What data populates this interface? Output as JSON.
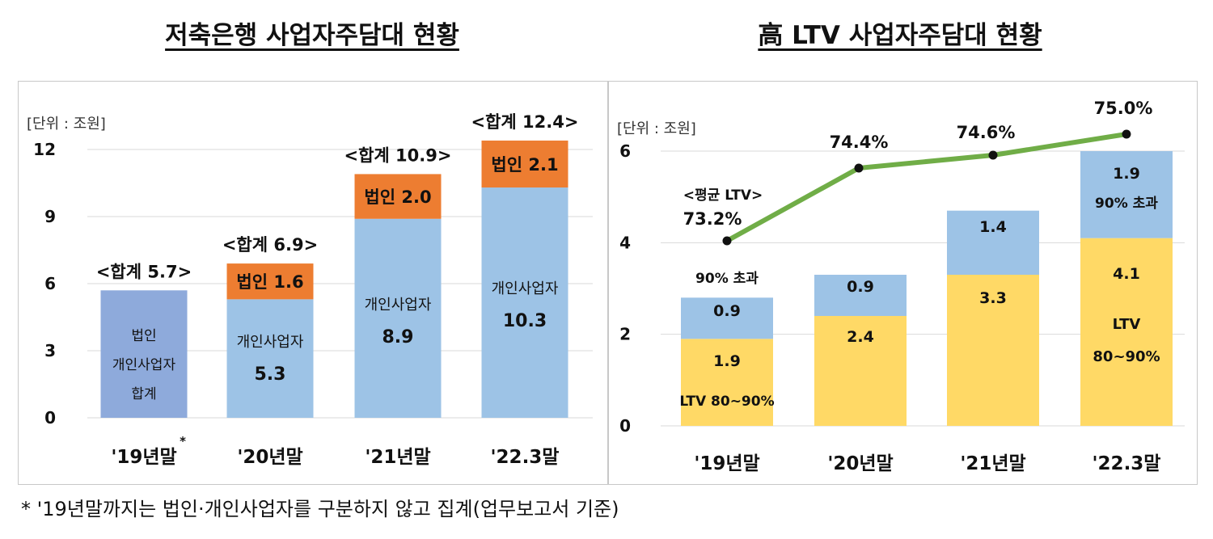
{
  "left": {
    "title": "저축은행 사업자주담대 현황",
    "unit": "[단위 : 조원]",
    "chart_data": {
      "type": "bar",
      "stacked": true,
      "categories": [
        "'19년말*",
        "'20년말",
        "'21년말",
        "'22.3말"
      ],
      "category_labels": [
        "'19년말",
        "'20년말",
        "'21년말",
        "'22.3말"
      ],
      "ylim": [
        0,
        12
      ],
      "yticks": [
        "0",
        "3",
        "6",
        "9",
        "12"
      ],
      "grid": true,
      "series": [
        {
          "name": "개인사업자",
          "color": "#9dc3e6",
          "values": [
            null,
            5.3,
            8.9,
            10.3
          ]
        },
        {
          "name": "법인",
          "color": "#ed7d31",
          "values": [
            null,
            1.6,
            2.0,
            2.1
          ]
        }
      ],
      "combined_2019": {
        "value": 5.7,
        "color": "#8eaadb",
        "label_lines": [
          "법인",
          "개인사업자",
          "합계"
        ]
      },
      "totals": [
        5.7,
        6.9,
        10.9,
        12.4
      ],
      "total_labels": [
        "<합계 5.7>",
        "<합계 6.9>",
        "<합계 10.9>",
        "<합계 12.4>"
      ],
      "segment_labels": {
        "individual": [
          "개인사업자",
          "5.3",
          "8.9",
          "10.3"
        ],
        "corporate": [
          "법인 1.6",
          "법인 2.0",
          "법인 2.1"
        ]
      }
    }
  },
  "right": {
    "title": "高 LTV 사업자주담대 현황",
    "unit": "[단위 : 조원]",
    "chart_data": {
      "type": "bar",
      "stacked": true,
      "categories": [
        "'19년말",
        "'20년말",
        "'21년말",
        "'22.3말"
      ],
      "ylim": [
        0,
        6
      ],
      "yticks": [
        "0",
        "2",
        "4",
        "6"
      ],
      "grid": true,
      "series": [
        {
          "name": "LTV 80~90%",
          "color": "#ffd966",
          "values": [
            1.9,
            2.4,
            3.3,
            4.1
          ]
        },
        {
          "name": "90% 초과",
          "color": "#9dc3e6",
          "values": [
            0.9,
            0.9,
            1.4,
            1.9
          ]
        }
      ],
      "line": {
        "name": "<평균 LTV>",
        "color": "#70ad47",
        "values": [
          73.2,
          74.4,
          74.6,
          75.0
        ],
        "labels": [
          "73.2%",
          "74.4%",
          "74.6%",
          "75.0%"
        ]
      },
      "annotations": {
        "ltv_2019": "LTV 80~90%",
        "over_2019": "90% 초과",
        "over_last": "90% 초과",
        "ltv_last_1": "LTV",
        "ltv_last_2": "80~90%",
        "avg_label": "<평균 LTV>"
      }
    }
  },
  "footnote": "* '19년말까지는 법인·개인사업자를 구분하지 않고 집계(업무보고서 기준)"
}
